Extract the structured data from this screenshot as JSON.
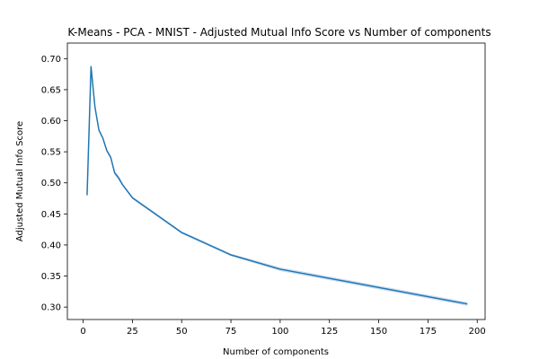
{
  "chart_data": {
    "type": "line",
    "title": "K-Means - PCA - MNIST - Adjusted Mutual Info Score vs Number of components",
    "xlabel": "Number of components",
    "ylabel": "Adjusted Mutual Info Score",
    "xlim": [
      -8,
      204
    ],
    "ylim": [
      0.28,
      0.725
    ],
    "xticks": [
      0,
      25,
      50,
      75,
      100,
      125,
      150,
      175,
      200
    ],
    "yticks": [
      0.3,
      0.35,
      0.4,
      0.45,
      0.5,
      0.55,
      0.6,
      0.65,
      0.7
    ],
    "xtick_labels": [
      "0",
      "25",
      "50",
      "75",
      "100",
      "125",
      "150",
      "175",
      "200"
    ],
    "ytick_labels": [
      "0.30",
      "0.35",
      "0.40",
      "0.45",
      "0.50",
      "0.55",
      "0.60",
      "0.65",
      "0.70"
    ],
    "grid": false,
    "series": [
      {
        "color": "#1f77b4",
        "band_color": "#aec7e8",
        "x": [
          2,
          4,
          6,
          8,
          10,
          12,
          14,
          16,
          18,
          20,
          25,
          50,
          75,
          100,
          195
        ],
        "y": [
          0.48,
          0.687,
          0.622,
          0.585,
          0.572,
          0.552,
          0.541,
          0.516,
          0.508,
          0.497,
          0.476,
          0.42,
          0.384,
          0.361,
          0.305
        ],
        "band_half_width": [
          0.0,
          0.002,
          0.002,
          0.002,
          0.002,
          0.002,
          0.003,
          0.003,
          0.004,
          0.002,
          0.002,
          0.002,
          0.002,
          0.003,
          0.003
        ]
      }
    ]
  }
}
